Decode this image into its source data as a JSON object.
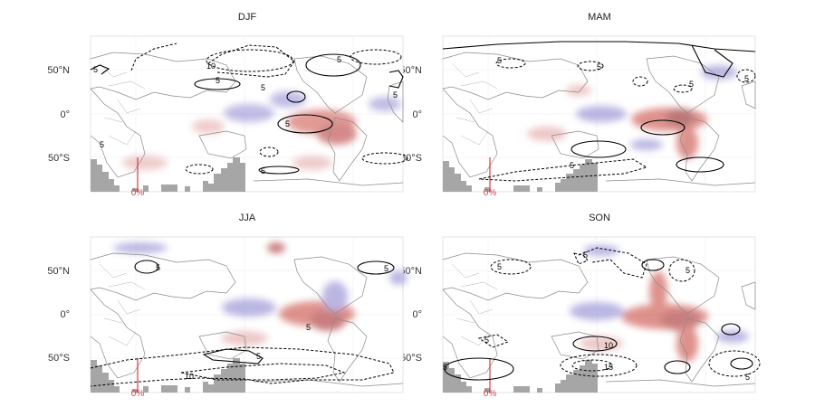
{
  "panels": [
    {
      "key": "djf",
      "title": "DJF"
    },
    {
      "key": "mam",
      "title": "MAM"
    },
    {
      "key": "jja",
      "title": "JJA"
    },
    {
      "key": "son",
      "title": "SON"
    }
  ],
  "axis": {
    "lat_labels": [
      "50°N",
      "0°",
      "50°S"
    ]
  },
  "inset": {
    "label": "0%"
  },
  "contour_labels": {
    "five": "5",
    "ten": "10",
    "fifteen": "15"
  },
  "colors": {
    "positive_anomaly": "#b23a3a",
    "negative_anomaly": "#8c86d0",
    "inset_bars": "#a6a6a6",
    "zero_line": "#d0404a",
    "coastline": "#8a8a8a",
    "contour": "#000000"
  }
}
